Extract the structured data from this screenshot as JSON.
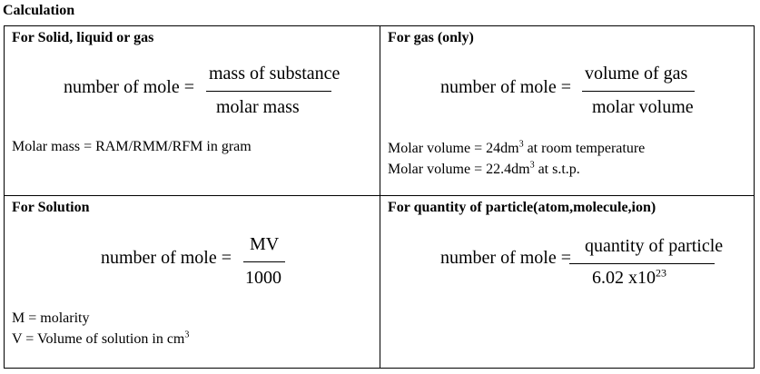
{
  "heading": "Calculation",
  "cells": {
    "solid": {
      "title": "For Solid, liquid or gas",
      "lhs": "number of mole =",
      "numerator": "mass of substance",
      "denominator": "molar mass",
      "note": "Molar mass = RAM/RMM/RFM in gram"
    },
    "gas": {
      "title": "For gas (only)",
      "lhs": "number of mole =",
      "numerator": "volume of gas",
      "denominator": "molar volume",
      "note1_pre": "Molar volume = 24dm",
      "note1_sup": "3",
      "note1_post": " at room temperature",
      "note2_pre": "Molar volume = 22.4dm",
      "note2_sup": "3",
      "note2_post": " at s.t.p."
    },
    "solution": {
      "title": "For Solution",
      "lhs": "number of mole =",
      "numerator": "MV",
      "denominator": "1000",
      "note1": "M = molarity",
      "note2_pre": "V = Volume of solution in cm",
      "note2_sup": "3"
    },
    "particle": {
      "title": "For quantity of particle(atom,molecule,ion)",
      "lhs": "number of mole =",
      "numerator": "quantity of particle",
      "denominator_pre": "6.02 x10",
      "denominator_sup": "23"
    }
  }
}
